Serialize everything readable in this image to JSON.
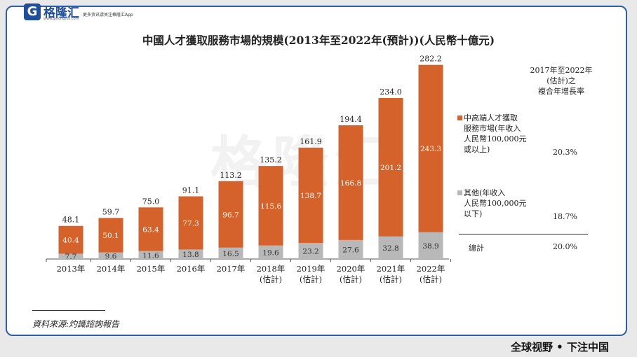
{
  "branding": {
    "logo_mark": "G",
    "logo_text": "格隆汇",
    "logo_url": "www.gelonghui.com",
    "slogan": "更多资讯请关注格隆汇App",
    "watermark": "格隆汇",
    "footer": "全球视野 • 下注中国"
  },
  "colors": {
    "upper": "#d4622a",
    "lower": "#b8b8b8",
    "frame": "#2f5ea8"
  },
  "chart_data": {
    "type": "bar",
    "stacked": true,
    "title": "中國人才獲取服務市場的規模(2013年至2022年(預計))(人民幣十億元)",
    "categories": [
      [
        "2013年"
      ],
      [
        "2014年"
      ],
      [
        "2015年"
      ],
      [
        "2016年"
      ],
      [
        "2017年"
      ],
      [
        "2018年",
        "(估計)"
      ],
      [
        "2019年",
        "(估計)"
      ],
      [
        "2020年",
        "(估計)"
      ],
      [
        "2021年",
        "(估計)"
      ],
      [
        "2022年",
        "(估計)"
      ]
    ],
    "series": [
      {
        "name": "其他(年收入人民幣100,000元以下)",
        "values": [
          7.7,
          9.6,
          11.6,
          13.8,
          16.5,
          19.6,
          23.2,
          27.6,
          32.8,
          38.9
        ]
      },
      {
        "name": "中高端人才獲取服務市場(年收入人民幣100,000元或以上)",
        "values": [
          40.4,
          50.1,
          63.4,
          77.3,
          96.7,
          115.6,
          138.7,
          166.8,
          201.2,
          243.3
        ]
      }
    ],
    "totals": [
      48.1,
      59.7,
      75.0,
      91.1,
      113.2,
      135.2,
      161.9,
      194.4,
      234.0,
      282.2
    ],
    "ylim": [
      0,
      290
    ]
  },
  "legend": {
    "cagr_header": "2017年至2022年\n(估計)之\n複合年增長率",
    "upper_label": "中高端人才獲取\n服務市場(年收入\n人民幣100,000元\n或以上)",
    "upper_cagr": "20.3%",
    "lower_label": "其他(年收入\n人民幣100,000元\n以下)",
    "lower_cagr": "18.7%",
    "total_label": "總計",
    "total_cagr": "20.0%"
  },
  "source": "資料來源:灼識諮詢報告"
}
